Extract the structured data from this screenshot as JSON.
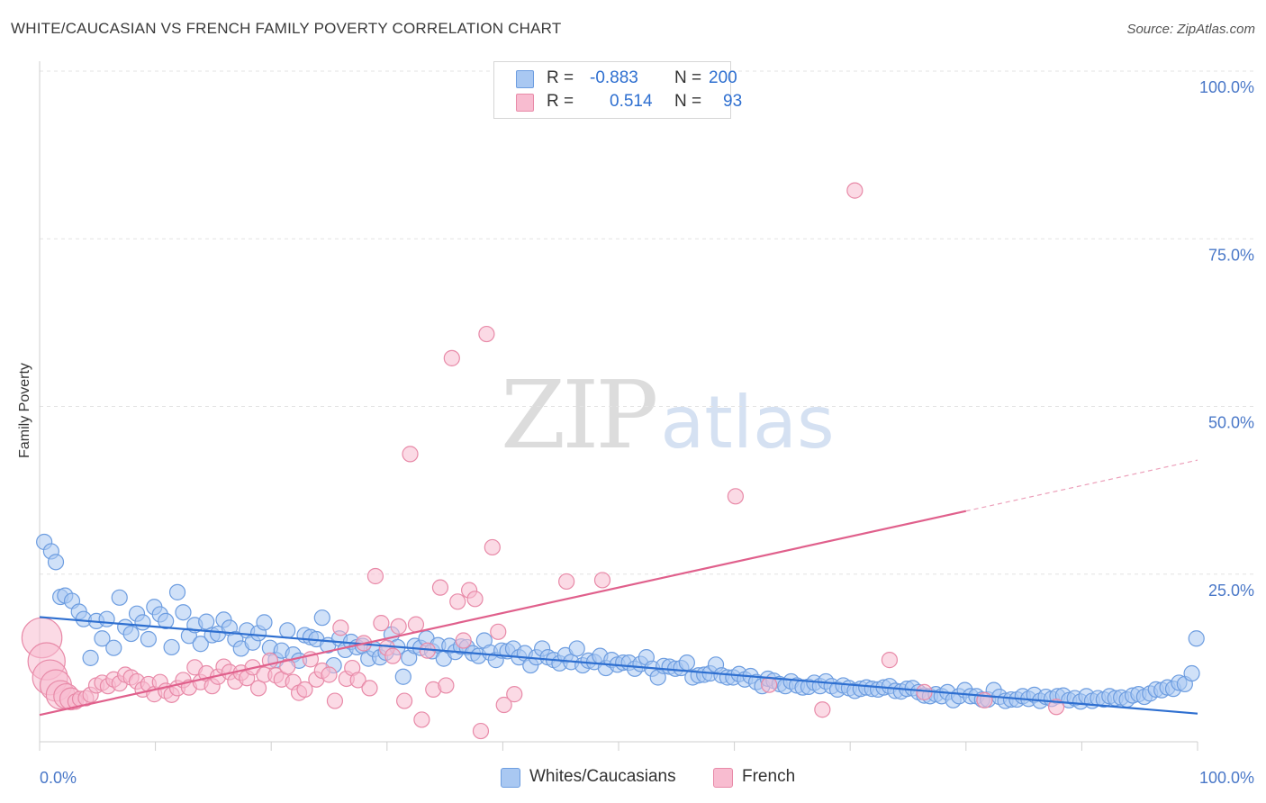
{
  "title": "WHITE/CAUCASIAN VS FRENCH FAMILY POVERTY CORRELATION CHART",
  "source": "Source: ZipAtlas.com",
  "watermark": {
    "zip": "ZIP",
    "atlas": "atlas"
  },
  "legend": {
    "rows": [
      {
        "r_label": "R =",
        "r_value": "-0.883",
        "n_label": "N =",
        "n_value": "200",
        "color": "#a9c8f2",
        "border": "#6d9de0"
      },
      {
        "r_label": "R =",
        "r_value": "0.514",
        "n_label": "N =",
        "n_value": "93",
        "color": "#f8bcd0",
        "border": "#e88aa8"
      }
    ]
  },
  "bottom_legend": [
    {
      "label": "Whites/Caucasians",
      "color": "#a9c8f2",
      "border": "#6d9de0"
    },
    {
      "label": "French",
      "color": "#f8bcd0",
      "border": "#e88aa8"
    }
  ],
  "chart_data": {
    "type": "scatter",
    "title": "WHITE/CAUCASIAN VS FRENCH FAMILY POVERTY CORRELATION CHART",
    "xlabel": "",
    "ylabel": "Family Poverty",
    "x_tick_labels": [
      "0.0%",
      "100.0%"
    ],
    "y_tick_labels": [
      "100.0%",
      "75.0%",
      "50.0%",
      "25.0%"
    ],
    "xlim": [
      0,
      100
    ],
    "ylim": [
      0,
      100
    ],
    "y_ticks": [
      100,
      75,
      50,
      25
    ],
    "grid": true,
    "series": [
      {
        "name": "Whites/Caucasians",
        "color": "#6d9de0",
        "fill": "#a9c8f2",
        "line_color": "#2e6fd0",
        "trend": {
          "x": [
            0,
            100
          ],
          "y": [
            18.6,
            4.2
          ]
        },
        "points": [
          [
            0.4,
            29.8
          ],
          [
            1.0,
            28.4
          ],
          [
            1.4,
            26.8
          ],
          [
            1.8,
            21.6
          ],
          [
            2.2,
            21.8
          ],
          [
            2.8,
            21.0
          ],
          [
            3.4,
            19.4
          ],
          [
            3.8,
            18.3
          ],
          [
            4.4,
            12.5
          ],
          [
            4.9,
            18.0
          ],
          [
            5.4,
            15.4
          ],
          [
            5.8,
            18.3
          ],
          [
            6.4,
            14.0
          ],
          [
            6.9,
            21.5
          ],
          [
            7.4,
            17.1
          ],
          [
            7.9,
            16.1
          ],
          [
            8.4,
            19.1
          ],
          [
            8.9,
            17.8
          ],
          [
            9.4,
            15.3
          ],
          [
            9.9,
            20.1
          ],
          [
            10.4,
            19.0
          ],
          [
            10.9,
            18.0
          ],
          [
            11.4,
            14.1
          ],
          [
            11.9,
            22.3
          ],
          [
            12.4,
            19.3
          ],
          [
            12.9,
            15.8
          ],
          [
            13.4,
            17.4
          ],
          [
            13.9,
            14.6
          ],
          [
            14.4,
            17.9
          ],
          [
            14.9,
            15.9
          ],
          [
            15.4,
            16.1
          ],
          [
            15.9,
            18.2
          ],
          [
            16.4,
            17.0
          ],
          [
            16.9,
            15.3
          ],
          [
            17.4,
            13.9
          ],
          [
            17.9,
            16.6
          ],
          [
            18.4,
            14.8
          ],
          [
            18.9,
            16.2
          ],
          [
            19.4,
            17.8
          ],
          [
            19.9,
            14.0
          ],
          [
            20.4,
            12.2
          ],
          [
            20.9,
            13.6
          ],
          [
            21.4,
            16.6
          ],
          [
            21.9,
            13.0
          ],
          [
            22.4,
            12.1
          ],
          [
            22.9,
            15.9
          ],
          [
            23.4,
            15.6
          ],
          [
            23.9,
            15.3
          ],
          [
            24.4,
            18.5
          ],
          [
            24.9,
            14.4
          ],
          [
            25.4,
            11.4
          ],
          [
            25.9,
            15.4
          ],
          [
            26.4,
            13.7
          ],
          [
            26.9,
            14.9
          ],
          [
            27.4,
            14.1
          ],
          [
            27.9,
            14.3
          ],
          [
            28.4,
            12.4
          ],
          [
            28.9,
            13.8
          ],
          [
            29.4,
            12.6
          ],
          [
            29.9,
            13.3
          ],
          [
            30.4,
            16.0
          ],
          [
            30.9,
            14.1
          ],
          [
            31.4,
            9.7
          ],
          [
            31.9,
            12.5
          ],
          [
            32.4,
            14.3
          ],
          [
            32.9,
            14.0
          ],
          [
            33.4,
            15.4
          ],
          [
            33.9,
            13.5
          ],
          [
            34.4,
            14.4
          ],
          [
            34.9,
            12.4
          ],
          [
            35.4,
            14.3
          ],
          [
            35.9,
            13.4
          ],
          [
            36.4,
            14.2
          ],
          [
            36.9,
            14.1
          ],
          [
            37.4,
            13.2
          ],
          [
            37.9,
            12.8
          ],
          [
            38.4,
            15.1
          ],
          [
            38.9,
            13.3
          ],
          [
            39.4,
            12.2
          ],
          [
            39.9,
            13.6
          ],
          [
            40.4,
            13.5
          ],
          [
            40.9,
            13.9
          ],
          [
            41.4,
            12.6
          ],
          [
            41.9,
            13.2
          ],
          [
            42.4,
            11.4
          ],
          [
            42.9,
            12.6
          ],
          [
            43.4,
            13.9
          ],
          [
            43.9,
            12.6
          ],
          [
            44.4,
            12.2
          ],
          [
            44.9,
            11.7
          ],
          [
            45.4,
            12.9
          ],
          [
            45.9,
            11.9
          ],
          [
            46.4,
            13.9
          ],
          [
            46.9,
            11.4
          ],
          [
            47.4,
            12.1
          ],
          [
            47.9,
            11.9
          ],
          [
            48.4,
            12.8
          ],
          [
            48.9,
            11.0
          ],
          [
            49.4,
            12.2
          ],
          [
            49.9,
            11.5
          ],
          [
            50.4,
            11.8
          ],
          [
            50.9,
            11.8
          ],
          [
            51.4,
            10.9
          ],
          [
            51.9,
            11.6
          ],
          [
            52.4,
            12.6
          ],
          [
            52.9,
            10.9
          ],
          [
            53.4,
            9.6
          ],
          [
            53.9,
            11.3
          ],
          [
            54.4,
            11.2
          ],
          [
            54.9,
            10.9
          ],
          [
            55.4,
            11.0
          ],
          [
            55.9,
            11.8
          ],
          [
            56.4,
            9.6
          ],
          [
            56.9,
            9.9
          ],
          [
            57.4,
            10.0
          ],
          [
            57.9,
            10.2
          ],
          [
            58.4,
            11.5
          ],
          [
            58.9,
            9.9
          ],
          [
            59.4,
            9.6
          ],
          [
            59.9,
            9.6
          ],
          [
            60.4,
            10.1
          ],
          [
            60.9,
            9.3
          ],
          [
            61.4,
            9.8
          ],
          [
            61.9,
            8.9
          ],
          [
            62.4,
            8.3
          ],
          [
            62.9,
            9.4
          ],
          [
            63.4,
            9.1
          ],
          [
            63.9,
            8.6
          ],
          [
            64.4,
            8.3
          ],
          [
            64.9,
            9.0
          ],
          [
            65.4,
            8.4
          ],
          [
            65.9,
            8.1
          ],
          [
            66.4,
            8.2
          ],
          [
            66.9,
            8.8
          ],
          [
            67.4,
            8.3
          ],
          [
            67.9,
            9.0
          ],
          [
            68.4,
            8.3
          ],
          [
            68.9,
            7.8
          ],
          [
            69.4,
            8.4
          ],
          [
            69.9,
            8.0
          ],
          [
            70.4,
            7.6
          ],
          [
            70.9,
            7.9
          ],
          [
            71.4,
            8.1
          ],
          [
            71.9,
            7.9
          ],
          [
            72.4,
            7.8
          ],
          [
            72.9,
            8.1
          ],
          [
            73.4,
            8.3
          ],
          [
            73.9,
            7.6
          ],
          [
            74.4,
            7.5
          ],
          [
            74.9,
            7.9
          ],
          [
            75.4,
            8.0
          ],
          [
            75.9,
            7.4
          ],
          [
            76.4,
            6.9
          ],
          [
            76.9,
            6.8
          ],
          [
            77.4,
            7.1
          ],
          [
            77.9,
            6.8
          ],
          [
            78.4,
            7.4
          ],
          [
            78.9,
            6.2
          ],
          [
            79.4,
            6.8
          ],
          [
            79.9,
            7.7
          ],
          [
            80.4,
            6.8
          ],
          [
            80.9,
            6.8
          ],
          [
            81.4,
            6.3
          ],
          [
            81.9,
            6.3
          ],
          [
            82.4,
            7.7
          ],
          [
            82.9,
            6.7
          ],
          [
            83.4,
            6.1
          ],
          [
            83.9,
            6.3
          ],
          [
            84.4,
            6.3
          ],
          [
            84.9,
            6.8
          ],
          [
            85.4,
            6.4
          ],
          [
            85.9,
            7.0
          ],
          [
            86.4,
            6.1
          ],
          [
            86.9,
            6.7
          ],
          [
            87.4,
            6.4
          ],
          [
            87.9,
            6.8
          ],
          [
            88.4,
            6.9
          ],
          [
            88.9,
            6.2
          ],
          [
            89.4,
            6.5
          ],
          [
            89.9,
            6.0
          ],
          [
            90.4,
            6.8
          ],
          [
            90.9,
            6.1
          ],
          [
            91.4,
            6.5
          ],
          [
            91.9,
            6.3
          ],
          [
            92.4,
            6.8
          ],
          [
            92.9,
            6.5
          ],
          [
            93.4,
            6.6
          ],
          [
            93.9,
            6.3
          ],
          [
            94.4,
            6.9
          ],
          [
            94.9,
            7.1
          ],
          [
            95.4,
            6.7
          ],
          [
            95.9,
            7.2
          ],
          [
            96.4,
            7.8
          ],
          [
            96.9,
            7.7
          ],
          [
            97.4,
            8.1
          ],
          [
            97.9,
            7.9
          ],
          [
            98.4,
            8.8
          ],
          [
            98.9,
            8.6
          ],
          [
            99.5,
            10.2
          ],
          [
            99.9,
            15.4
          ]
        ]
      },
      {
        "name": "French",
        "color": "#e88aa8",
        "fill": "#f8bcd0",
        "line_color": "#e0608c",
        "trend": {
          "x": [
            0,
            80
          ],
          "y": [
            4.0,
            34.4
          ]
        },
        "trend_dashed": {
          "x": [
            80,
            100
          ],
          "y": [
            34.4,
            42.0
          ]
        },
        "points": [
          [
            0.2,
            15.5
          ],
          [
            0.6,
            12.0
          ],
          [
            0.9,
            9.6
          ],
          [
            1.4,
            8.4
          ],
          [
            1.8,
            7.0
          ],
          [
            2.3,
            6.8
          ],
          [
            2.7,
            6.4
          ],
          [
            3.1,
            6.0
          ],
          [
            3.5,
            6.4
          ],
          [
            4.0,
            6.5
          ],
          [
            4.4,
            7.0
          ],
          [
            4.9,
            8.4
          ],
          [
            5.4,
            8.8
          ],
          [
            5.9,
            8.3
          ],
          [
            6.4,
            9.3
          ],
          [
            6.9,
            8.7
          ],
          [
            7.4,
            10.0
          ],
          [
            7.9,
            9.6
          ],
          [
            8.4,
            9.0
          ],
          [
            8.9,
            7.8
          ],
          [
            9.4,
            8.6
          ],
          [
            9.9,
            7.1
          ],
          [
            10.4,
            8.9
          ],
          [
            10.9,
            7.6
          ],
          [
            11.4,
            7.0
          ],
          [
            11.9,
            8.0
          ],
          [
            12.4,
            9.2
          ],
          [
            12.9,
            8.1
          ],
          [
            13.4,
            11.1
          ],
          [
            13.9,
            8.9
          ],
          [
            14.4,
            10.2
          ],
          [
            14.9,
            8.3
          ],
          [
            15.4,
            9.7
          ],
          [
            15.9,
            11.2
          ],
          [
            16.4,
            10.4
          ],
          [
            16.9,
            9.0
          ],
          [
            17.4,
            10.3
          ],
          [
            17.9,
            9.5
          ],
          [
            18.4,
            11.1
          ],
          [
            18.9,
            8.0
          ],
          [
            19.4,
            10.0
          ],
          [
            19.9,
            12.1
          ],
          [
            20.4,
            9.9
          ],
          [
            20.9,
            9.3
          ],
          [
            21.4,
            11.2
          ],
          [
            21.9,
            8.9
          ],
          [
            22.4,
            7.3
          ],
          [
            22.9,
            7.8
          ],
          [
            23.4,
            12.3
          ],
          [
            23.9,
            9.3
          ],
          [
            24.4,
            10.6
          ],
          [
            25.0,
            10.0
          ],
          [
            25.5,
            6.1
          ],
          [
            26.0,
            17.0
          ],
          [
            26.5,
            9.4
          ],
          [
            27.0,
            11.0
          ],
          [
            27.5,
            9.2
          ],
          [
            28.0,
            14.7
          ],
          [
            28.5,
            8.0
          ],
          [
            29.0,
            24.7
          ],
          [
            29.5,
            17.7
          ],
          [
            30.0,
            14.0
          ],
          [
            30.5,
            12.8
          ],
          [
            31.0,
            17.2
          ],
          [
            31.5,
            6.1
          ],
          [
            32.0,
            42.9
          ],
          [
            32.5,
            17.5
          ],
          [
            33.0,
            3.3
          ],
          [
            33.5,
            13.6
          ],
          [
            34.0,
            7.8
          ],
          [
            34.6,
            23.0
          ],
          [
            35.1,
            8.4
          ],
          [
            35.6,
            57.2
          ],
          [
            36.1,
            20.9
          ],
          [
            36.6,
            15.1
          ],
          [
            37.1,
            22.6
          ],
          [
            37.6,
            21.3
          ],
          [
            38.1,
            1.6
          ],
          [
            38.6,
            60.8
          ],
          [
            39.1,
            29.0
          ],
          [
            39.6,
            16.4
          ],
          [
            40.1,
            5.5
          ],
          [
            41.0,
            7.1
          ],
          [
            45.5,
            23.9
          ],
          [
            48.6,
            24.1
          ],
          [
            60.1,
            36.6
          ],
          [
            63.0,
            8.5
          ],
          [
            67.6,
            4.8
          ],
          [
            70.4,
            82.2
          ],
          [
            73.4,
            12.2
          ],
          [
            76.4,
            7.4
          ],
          [
            81.6,
            6.2
          ],
          [
            87.8,
            5.2
          ]
        ]
      }
    ]
  }
}
